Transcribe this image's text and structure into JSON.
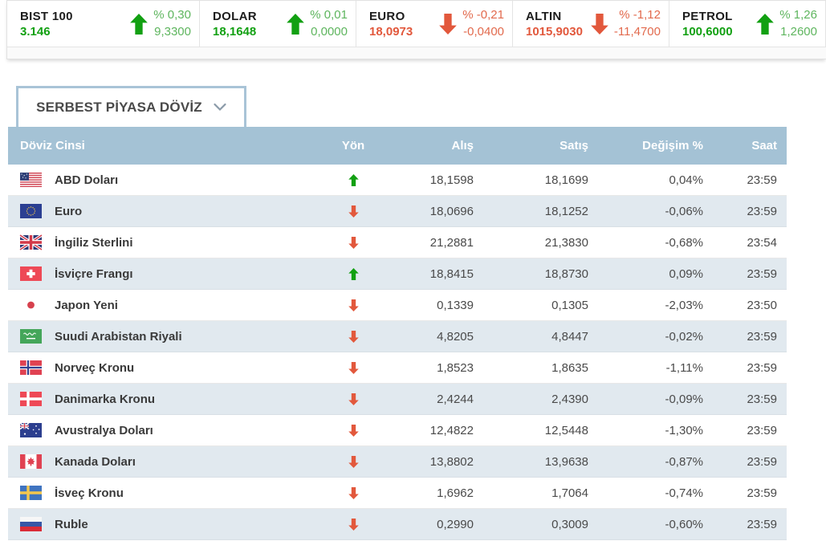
{
  "ticker": {
    "items": [
      {
        "name": "BIST 100",
        "value": "3.146",
        "direction": "up",
        "pct": "% 0,30",
        "change": "9,3300"
      },
      {
        "name": "DOLAR",
        "value": "18,1648",
        "direction": "up",
        "pct": "% 0,01",
        "change": "0,0000"
      },
      {
        "name": "EURO",
        "value": "18,0973",
        "direction": "down",
        "pct": "% -0,21",
        "change": "-0,0400"
      },
      {
        "name": "ALTIN",
        "value": "1015,9030",
        "direction": "down",
        "pct": "% -1,12",
        "change": "-11,4700"
      },
      {
        "name": "PETROL",
        "value": "100,6000",
        "direction": "up",
        "pct": "% 1,26",
        "change": "1,2600"
      }
    ]
  },
  "dropdown": {
    "label": "SERBEST PİYASA DÖVİZ"
  },
  "table": {
    "headers": {
      "currency": "Döviz Cinsi",
      "direction": "Yön",
      "buy": "Alış",
      "sell": "Satış",
      "change": "Değişim %",
      "time": "Saat"
    },
    "rows": [
      {
        "flag": "us",
        "name": "ABD Doları",
        "direction": "up",
        "buy": "18,1598",
        "sell": "18,1699",
        "change": "0,04%",
        "time": "23:59"
      },
      {
        "flag": "eu",
        "name": "Euro",
        "direction": "down",
        "buy": "18,0696",
        "sell": "18,1252",
        "change": "-0,06%",
        "time": "23:59"
      },
      {
        "flag": "gb",
        "name": "İngiliz Sterlini",
        "direction": "down",
        "buy": "21,2881",
        "sell": "21,3830",
        "change": "-0,68%",
        "time": "23:54"
      },
      {
        "flag": "ch",
        "name": "İsviçre Frangı",
        "direction": "up",
        "buy": "18,8415",
        "sell": "18,8730",
        "change": "0,09%",
        "time": "23:59"
      },
      {
        "flag": "jp",
        "name": "Japon Yeni",
        "direction": "down",
        "buy": "0,1339",
        "sell": "0,1305",
        "change": "-2,03%",
        "time": "23:50"
      },
      {
        "flag": "sa",
        "name": "Suudi Arabistan Riyali",
        "direction": "down",
        "buy": "4,8205",
        "sell": "4,8447",
        "change": "-0,02%",
        "time": "23:59"
      },
      {
        "flag": "no",
        "name": "Norveç Kronu",
        "direction": "down",
        "buy": "1,8523",
        "sell": "1,8635",
        "change": "-1,11%",
        "time": "23:59"
      },
      {
        "flag": "dk",
        "name": "Danimarka Kronu",
        "direction": "down",
        "buy": "2,4244",
        "sell": "2,4390",
        "change": "-0,09%",
        "time": "23:59"
      },
      {
        "flag": "au",
        "name": "Avustralya Doları",
        "direction": "down",
        "buy": "12,4822",
        "sell": "12,5448",
        "change": "-1,30%",
        "time": "23:59"
      },
      {
        "flag": "ca",
        "name": "Kanada Doları",
        "direction": "down",
        "buy": "13,8802",
        "sell": "13,9638",
        "change": "-0,87%",
        "time": "23:59"
      },
      {
        "flag": "se",
        "name": "İsveç Kronu",
        "direction": "down",
        "buy": "1,6962",
        "sell": "1,7064",
        "change": "-0,74%",
        "time": "23:59"
      },
      {
        "flag": "ru",
        "name": "Ruble",
        "direction": "down",
        "buy": "0,2990",
        "sell": "0,3009",
        "change": "-0,60%",
        "time": "23:59"
      }
    ]
  },
  "colors": {
    "up": "#12a012",
    "up_light": "#5eb55e",
    "down": "#e2583c",
    "down_light": "#e26a4d",
    "header_bg": "#a4c2d5",
    "row_alt": "#e1e9ef"
  }
}
